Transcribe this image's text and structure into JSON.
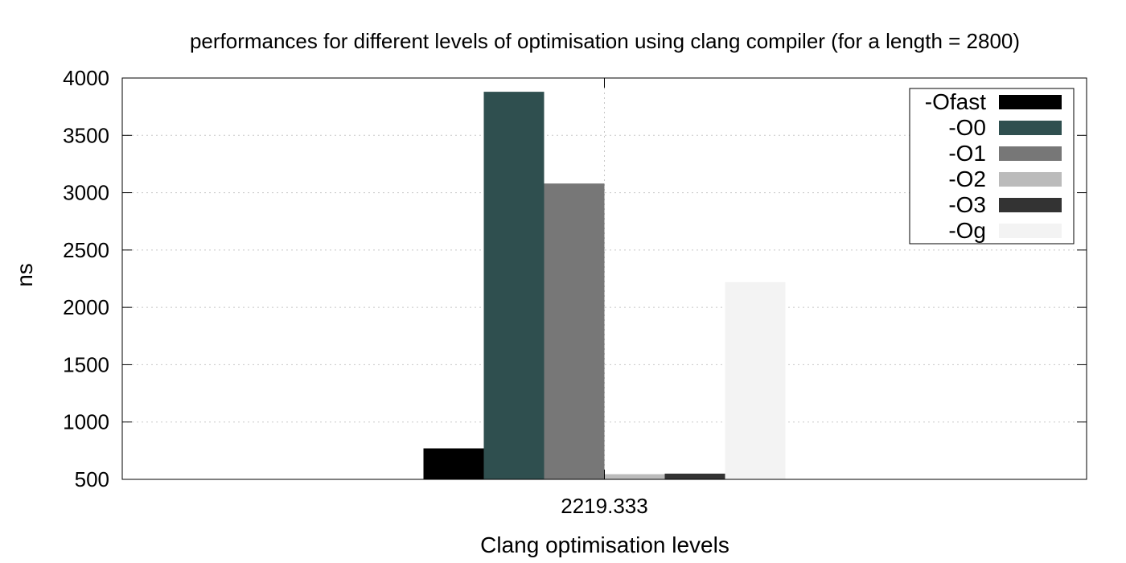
{
  "chart_data": {
    "type": "bar",
    "title": "performances for different levels of optimisation using clang compiler (for a length = 2800)",
    "xlabel": "Clang optimisation levels",
    "ylabel": "ns",
    "categories": [
      "2219.333"
    ],
    "ylim": [
      500,
      4000
    ],
    "yticks": [
      500,
      1000,
      1500,
      2000,
      2500,
      3000,
      3500,
      4000
    ],
    "grid": true,
    "legend_position": "top-right",
    "series": [
      {
        "name": "-Ofast",
        "values": [
          770
        ],
        "color": "#000000"
      },
      {
        "name": "-O0",
        "values": [
          3880
        ],
        "color": "#2f4f4f"
      },
      {
        "name": "-O1",
        "values": [
          3080
        ],
        "color": "#777777"
      },
      {
        "name": "-O2",
        "values": [
          545
        ],
        "color": "#bbbbbb"
      },
      {
        "name": "-O3",
        "values": [
          550
        ],
        "color": "#333333"
      },
      {
        "name": "-Og",
        "values": [
          2220
        ],
        "color": "#f3f3f3"
      }
    ]
  }
}
